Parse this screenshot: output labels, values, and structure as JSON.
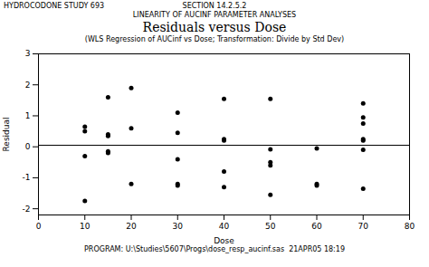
{
  "chart_data": {
    "type": "scatter",
    "title_top_left": "HYDROCODONE STUDY 693",
    "section": "SECTION 14.2.5.2",
    "section_sub": "LINEARITY OF AUCINF PARAMETER ANALYSES",
    "title": "Residuals versus Dose",
    "subtitle": "(WLS Regression of AUCinf vs Dose; Transformation: Divide by Std Dev)",
    "xlabel": "Dose",
    "ylabel": "Residual",
    "footer": "PROGRAM: U:\\Studies\\5607\\Progs\\dose_resp_aucinf.sas  21APR05 18:19",
    "xlim": [
      0,
      80
    ],
    "ylim": [
      -2.2,
      3.0
    ],
    "xticks": [
      0,
      10,
      20,
      30,
      40,
      50,
      60,
      70,
      80
    ],
    "yticks": [
      -2,
      -1,
      0,
      1,
      2,
      3
    ],
    "hline_y": 0.05,
    "color": "#000000",
    "x": [
      10,
      10,
      10,
      10,
      15,
      15,
      15,
      15,
      15,
      20,
      20,
      20,
      30,
      30,
      30,
      30,
      30,
      40,
      40,
      40,
      40,
      40,
      50,
      50,
      50,
      50,
      50,
      60,
      60,
      60,
      70,
      70,
      70,
      70,
      70,
      70,
      70
    ],
    "values": [
      0.65,
      0.5,
      -0.3,
      -1.75,
      1.6,
      0.4,
      0.35,
      -0.15,
      -0.2,
      1.9,
      0.6,
      -1.2,
      1.1,
      0.45,
      -0.4,
      -1.2,
      -1.25,
      1.55,
      0.25,
      0.2,
      -0.8,
      -1.3,
      1.55,
      -0.08,
      -0.5,
      -0.6,
      -1.55,
      -0.05,
      -1.2,
      -1.25,
      1.4,
      0.95,
      0.75,
      0.25,
      0.2,
      -0.1,
      -1.35
    ]
  }
}
